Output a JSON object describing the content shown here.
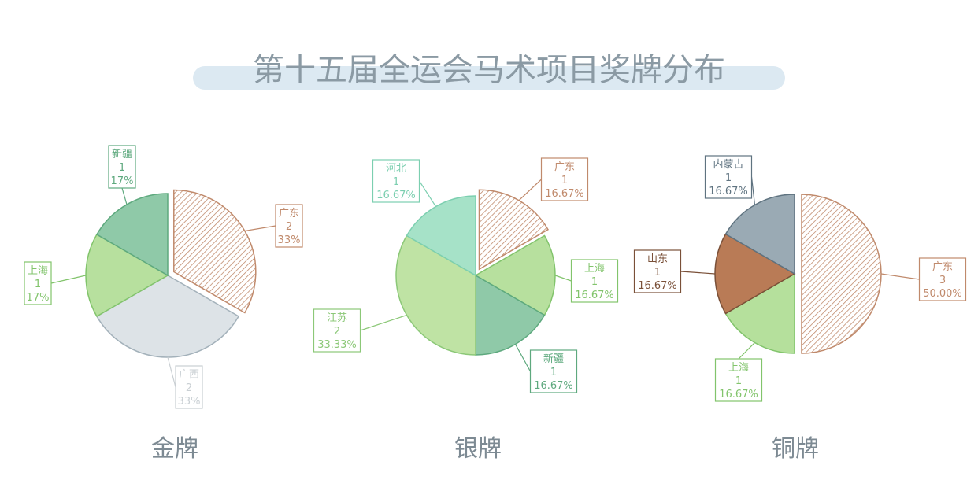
{
  "title": "第十五届全运会马术项目奖牌分布",
  "colors": {
    "title_band": "#dce9f2",
    "title_text": "#8b9aa4",
    "subtitle_text": "#7d8a93",
    "hatch": "#c08a6c"
  },
  "chart_data": [
    {
      "type": "pie",
      "title": "金牌",
      "slices": [
        {
          "label": "广东",
          "value": 2,
          "percent": "33%",
          "fill": "hatch",
          "stroke": "#c08a6c",
          "exploded": true
        },
        {
          "label": "广西",
          "value": 2,
          "percent": "33%",
          "fill": "#dde3e7",
          "stroke": "#a3b1ba",
          "text": "#c9cfd3"
        },
        {
          "label": "上海",
          "value": 1,
          "percent": "17%",
          "fill": "#b7e09e",
          "stroke": "#82c46c"
        },
        {
          "label": "新疆",
          "value": 1,
          "percent": "17%",
          "fill": "#8fc9a8",
          "stroke": "#5ea97e"
        }
      ]
    },
    {
      "type": "pie",
      "title": "银牌",
      "slices": [
        {
          "label": "广东",
          "value": 1,
          "percent": "16.67%",
          "fill": "hatch",
          "stroke": "#c08a6c",
          "exploded": true
        },
        {
          "label": "上海",
          "value": 1,
          "percent": "16.67%",
          "fill": "#b7e09e",
          "stroke": "#82c46c"
        },
        {
          "label": "新疆",
          "value": 1,
          "percent": "16.67%",
          "fill": "#8fc9a8",
          "stroke": "#5ea97e"
        },
        {
          "label": "江苏",
          "value": 2,
          "percent": "33.33%",
          "fill": "#bfe3a4",
          "stroke": "#8cc878"
        },
        {
          "label": "河北",
          "value": 1,
          "percent": "16.67%",
          "fill": "#a6e2c8",
          "stroke": "#7ccfb0"
        }
      ]
    },
    {
      "type": "pie",
      "title": "铜牌",
      "slices": [
        {
          "label": "广东",
          "value": 3,
          "percent": "50.00%",
          "fill": "hatch",
          "stroke": "#c08a6c",
          "exploded": true
        },
        {
          "label": "上海",
          "value": 1,
          "percent": "16.67%",
          "fill": "#b5e09c",
          "stroke": "#82c46c"
        },
        {
          "label": "山东",
          "value": 1,
          "percent": "16.67%",
          "fill": "#b97b56",
          "stroke": "#7a5038"
        },
        {
          "label": "内蒙古",
          "value": 1,
          "percent": "16.67%",
          "fill": "#9aaab4",
          "stroke": "#5f7380"
        }
      ]
    }
  ]
}
